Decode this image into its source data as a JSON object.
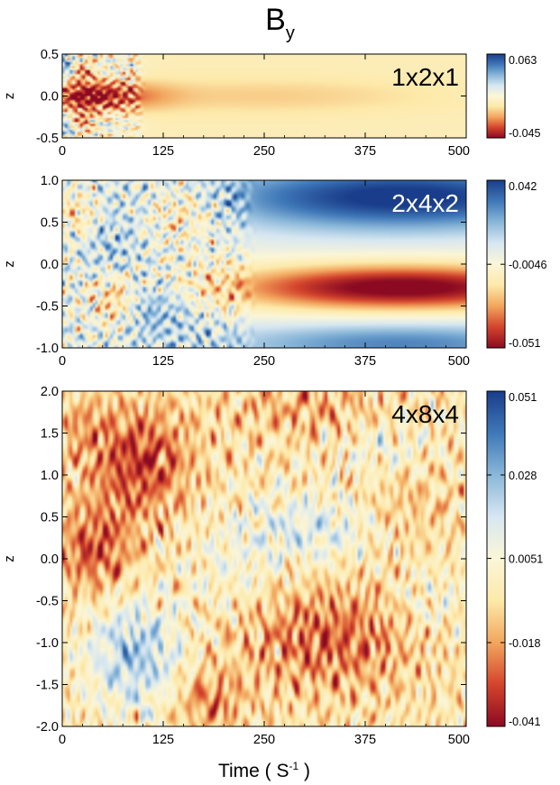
{
  "figure": {
    "title_main": "B",
    "title_sub": "y",
    "xlabel_prefix": "Time ( S",
    "xlabel_exp": "-1",
    "xlabel_suffix": ")"
  },
  "colormap": [
    "#8b0a22",
    "#d4442c",
    "#f2a65e",
    "#fde9a9",
    "#fbf6d8",
    "#d7e7f1",
    "#8ab7d9",
    "#3f78b8",
    "#1a3d8b"
  ],
  "chart_data": [
    {
      "type": "heatmap",
      "title": "1x2x1",
      "title_color": "#000000",
      "xlabel": "",
      "ylabel": "z",
      "xlim": [
        0,
        500
      ],
      "ylim": [
        -0.5,
        0.5
      ],
      "xticks": [
        "0",
        "125",
        "250",
        "375",
        "500"
      ],
      "yticks": [
        "0.5",
        "0.0",
        "-0.5"
      ],
      "colorbar": {
        "min": -0.045,
        "max": 0.063,
        "tick_labels": [
          "0.063",
          "-0.045"
        ]
      },
      "background_value": 0.0,
      "features": [
        {
          "t": 30,
          "z": 0.0,
          "st": 25,
          "sz": 0.1,
          "v": -0.04
        },
        {
          "t": 75,
          "z": 0.0,
          "st": 45,
          "sz": 0.12,
          "v": -0.02
        },
        {
          "t": 5,
          "z": 0.35,
          "st": 10,
          "sz": 0.1,
          "v": 0.045
        },
        {
          "t": 5,
          "z": -0.35,
          "st": 10,
          "sz": 0.1,
          "v": 0.04
        },
        {
          "t": 22,
          "z": 0.3,
          "st": 12,
          "sz": 0.08,
          "v": -0.03
        },
        {
          "t": 20,
          "z": -0.3,
          "st": 12,
          "sz": 0.08,
          "v": -0.03
        },
        {
          "t": 60,
          "z": 0.35,
          "st": 25,
          "sz": 0.1,
          "v": 0.012
        },
        {
          "t": 60,
          "z": -0.35,
          "st": 25,
          "sz": 0.1,
          "v": 0.012
        },
        {
          "t": 250,
          "z": 0.0,
          "st": 150,
          "sz": 0.15,
          "v": -0.01
        }
      ],
      "noise": {
        "t_max": 90,
        "amp": 0.035
      }
    },
    {
      "type": "heatmap",
      "title": "2x4x2",
      "title_color": "#ffffff",
      "xlabel": "",
      "ylabel": "z",
      "xlim": [
        0,
        500
      ],
      "ylim": [
        -1.0,
        1.0
      ],
      "xticks": [
        "0",
        "125",
        "250",
        "375",
        "500"
      ],
      "yticks": [
        "1.0",
        "0.5",
        "0.0",
        "-0.5",
        "-1.0"
      ],
      "colorbar": {
        "min": -0.051,
        "max": 0.042,
        "tick_labels": [
          "0.042",
          "-0.0046",
          "-0.051"
        ]
      },
      "background_value": 0.0,
      "features": [
        {
          "t": 420,
          "z": 0.8,
          "st": 170,
          "sz": 0.28,
          "v": 0.045
        },
        {
          "t": 420,
          "z": -0.28,
          "st": 160,
          "sz": 0.2,
          "v": -0.055
        },
        {
          "t": 420,
          "z": -0.95,
          "st": 160,
          "sz": 0.18,
          "v": 0.028
        },
        {
          "t": 150,
          "z": 0.65,
          "st": 35,
          "sz": 0.25,
          "v": -0.02
        },
        {
          "t": 110,
          "z": -0.5,
          "st": 40,
          "sz": 0.25,
          "v": 0.02
        },
        {
          "t": 60,
          "z": 0.2,
          "st": 30,
          "sz": 0.3,
          "v": 0.012
        },
        {
          "t": 65,
          "z": -0.45,
          "st": 20,
          "sz": 0.22,
          "v": -0.025
        },
        {
          "t": 20,
          "z": 0.6,
          "st": 18,
          "sz": 0.2,
          "v": -0.018
        }
      ],
      "noise": {
        "t_max": 210,
        "amp": 0.03
      }
    },
    {
      "type": "heatmap",
      "title": "4x8x4",
      "title_color": "#000000",
      "xlabel": "Time ( S-1)",
      "ylabel": "z",
      "xlim": [
        0,
        500
      ],
      "ylim": [
        -2.0,
        2.0
      ],
      "xticks": [
        "0",
        "125",
        "250",
        "375",
        "500"
      ],
      "yticks": [
        "2.0",
        "1.5",
        "1.0",
        "0.5",
        "0.0",
        "-0.5",
        "-1.0",
        "-1.5",
        "-2.0"
      ],
      "colorbar": {
        "min": -0.041,
        "max": 0.051,
        "tick_labels": [
          "0.051",
          "0.028",
          "0.0051",
          "-0.018",
          "-0.041"
        ]
      },
      "background_value": -0.004,
      "features": [
        {
          "t": 95,
          "z": 1.15,
          "st": 45,
          "sz": 0.45,
          "v": -0.028
        },
        {
          "t": 40,
          "z": 0.1,
          "st": 35,
          "sz": 0.35,
          "v": -0.024
        },
        {
          "t": 330,
          "z": -0.95,
          "st": 75,
          "sz": 0.45,
          "v": -0.022
        },
        {
          "t": 180,
          "z": -1.7,
          "st": 30,
          "sz": 0.25,
          "v": -0.018
        },
        {
          "t": 420,
          "z": 0.6,
          "st": 45,
          "sz": 0.45,
          "v": -0.01
        },
        {
          "t": 300,
          "z": 1.8,
          "st": 70,
          "sz": 0.25,
          "v": -0.012
        },
        {
          "t": 90,
          "z": -1.15,
          "st": 40,
          "sz": 0.45,
          "v": 0.028
        },
        {
          "t": 310,
          "z": 0.35,
          "st": 70,
          "sz": 0.3,
          "v": 0.018
        },
        {
          "t": 400,
          "z": 1.3,
          "st": 40,
          "sz": 0.25,
          "v": 0.012
        },
        {
          "t": 455,
          "z": -0.5,
          "st": 35,
          "sz": 0.3,
          "v": 0.01
        },
        {
          "t": 210,
          "z": -0.2,
          "st": 40,
          "sz": 0.35,
          "v": 0.008
        },
        {
          "t": 20,
          "z": 1.6,
          "st": 25,
          "sz": 0.25,
          "v": -0.01
        }
      ],
      "noise": {
        "t_max": 500,
        "amp": 0.022
      }
    }
  ]
}
